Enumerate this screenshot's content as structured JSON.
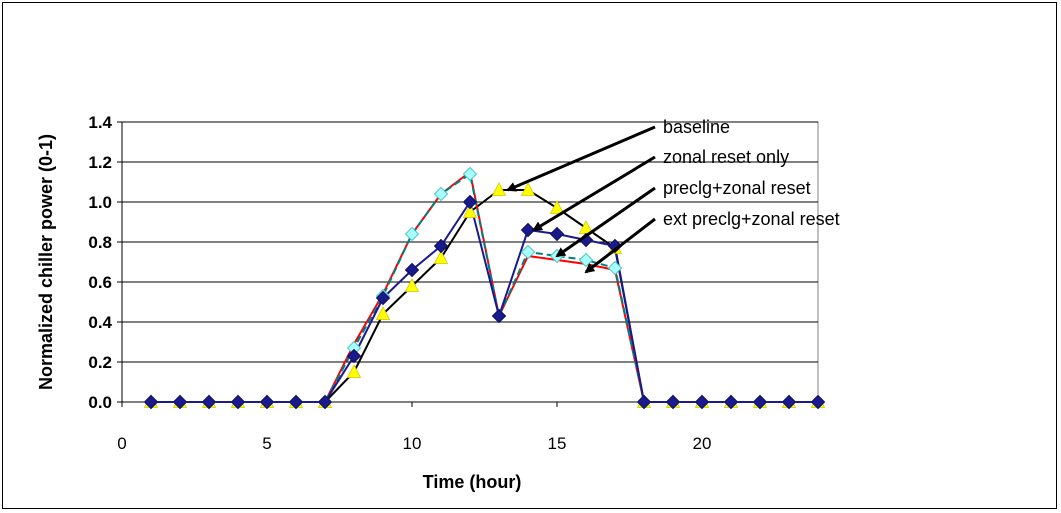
{
  "chart_data": {
    "type": "line",
    "xlabel": "Time (hour)",
    "ylabel": "Normalized chiller power (0-1)",
    "xlim": [
      0,
      24
    ],
    "ylim": [
      0,
      1.4
    ],
    "xticks": [
      "0",
      "5",
      "10",
      "15",
      "20"
    ],
    "yticks": [
      "0.0",
      "0.2",
      "0.4",
      "0.6",
      "0.8",
      "1.0",
      "1.2",
      "1.4"
    ],
    "x": [
      1,
      2,
      3,
      4,
      5,
      6,
      7,
      8,
      9,
      10,
      11,
      12,
      13,
      14,
      15,
      16,
      17,
      18,
      19,
      20,
      21,
      22,
      23,
      24
    ],
    "grid": "horizontal",
    "series": [
      {
        "name": "baseline",
        "color": "#000000",
        "marker": "triangle",
        "marker_color": "#ffff00",
        "values": [
          0,
          0,
          0,
          0,
          0,
          0,
          0,
          0.15,
          0.44,
          0.58,
          0.72,
          0.95,
          1.06,
          1.06,
          0.97,
          0.87,
          0.77,
          0,
          0,
          0,
          0,
          0,
          0,
          0
        ]
      },
      {
        "name": "zonal reset only",
        "color": "#1a1a8c",
        "marker": "diamond",
        "marker_color": "#1a1a8c",
        "values": [
          0,
          0,
          0,
          0,
          0,
          0,
          0,
          0.23,
          0.52,
          0.66,
          0.78,
          1.0,
          0.43,
          0.86,
          0.84,
          0.81,
          0.78,
          0,
          0,
          0,
          0,
          0,
          0,
          0
        ]
      },
      {
        "name": "preclg+zonal reset",
        "color": "#ff0000",
        "marker": "none",
        "marker_color": "#ff0000",
        "values": [
          0,
          0,
          0,
          0,
          0,
          0,
          0,
          0.29,
          0.54,
          0.84,
          1.04,
          1.15,
          0.43,
          0.73,
          0.71,
          0.69,
          0.66,
          0,
          0,
          0,
          0,
          0,
          0,
          0
        ]
      },
      {
        "name": "ext preclg+zonal reset",
        "color": "#008080",
        "marker": "diamond",
        "marker_color": "#aaffff",
        "values": [
          0,
          0,
          0,
          0,
          0,
          0,
          0,
          0.27,
          0.53,
          0.84,
          1.04,
          1.14,
          0.43,
          0.75,
          0.73,
          0.71,
          0.67,
          0,
          0,
          0,
          0,
          0,
          0,
          0
        ]
      }
    ],
    "annotations": [
      {
        "text": "baseline",
        "points_to": [
          13.3,
          1.06
        ]
      },
      {
        "text": "zonal reset only",
        "points_to": [
          14.2,
          0.86
        ]
      },
      {
        "text": "preclg+zonal reset",
        "points_to": [
          15.0,
          0.73
        ]
      },
      {
        "text": "ext preclg+zonal reset",
        "points_to": [
          16.0,
          0.65
        ]
      }
    ]
  }
}
